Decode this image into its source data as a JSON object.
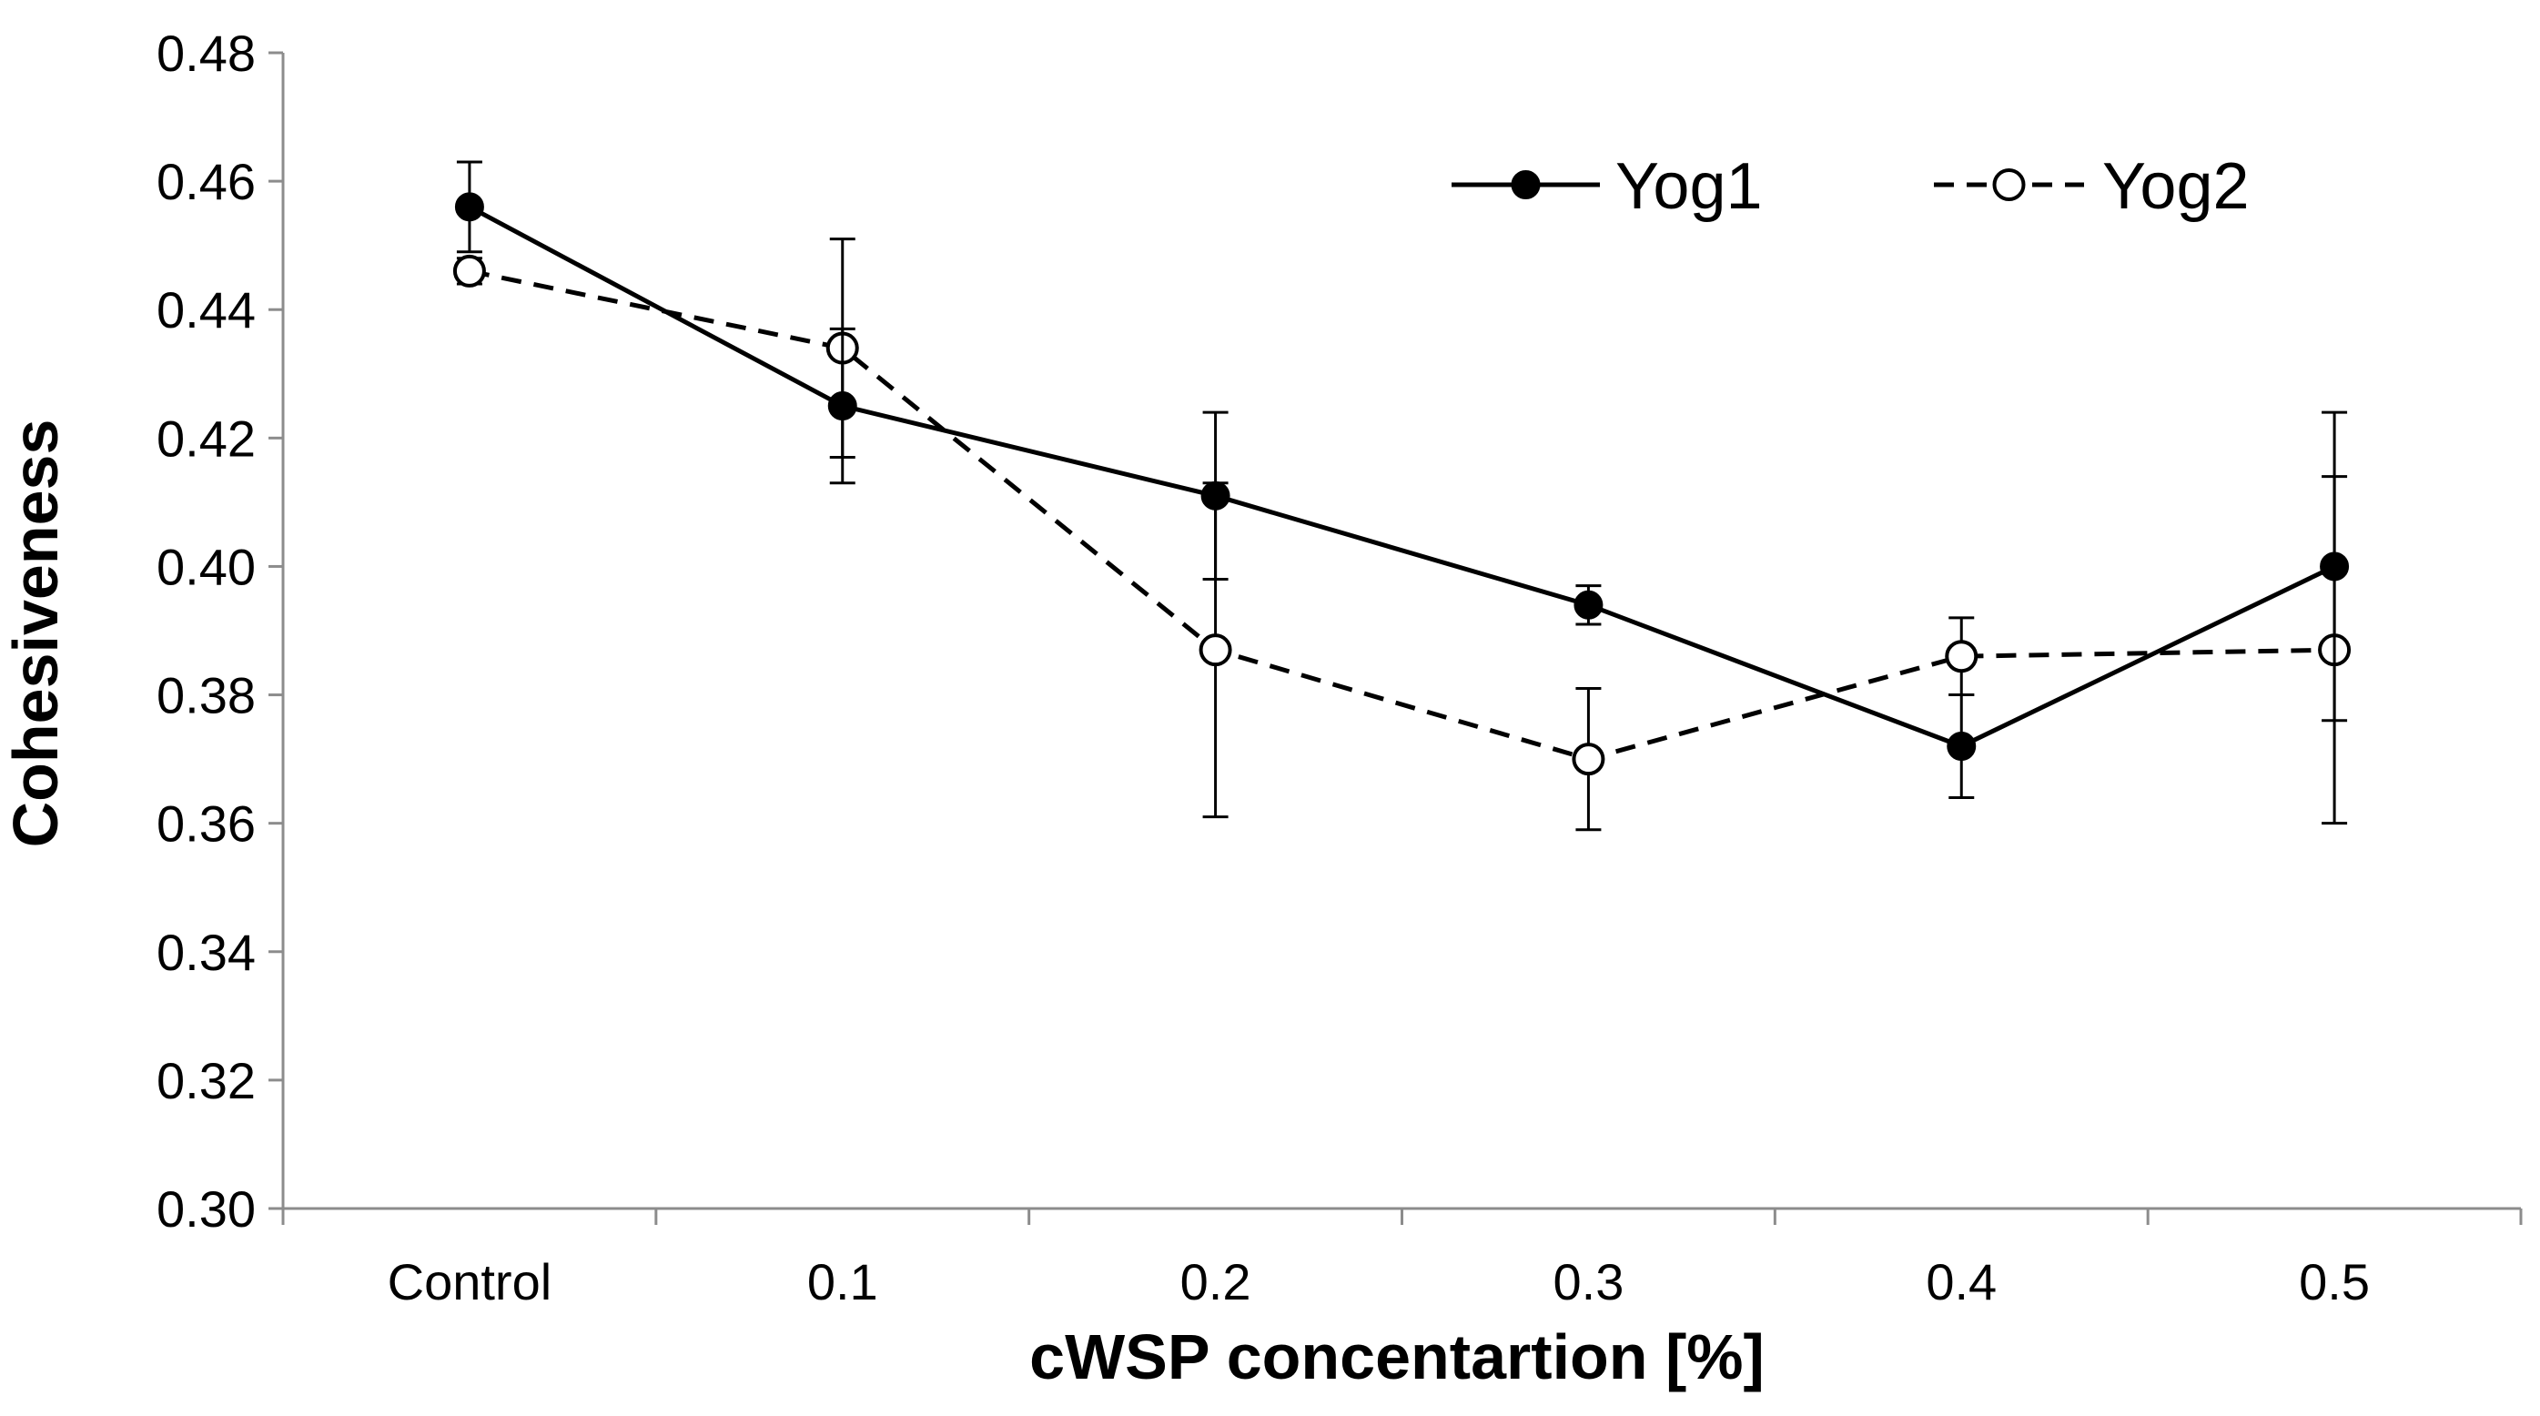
{
  "chart_data": {
    "type": "line",
    "categories": [
      "Control",
      "0.1",
      "0.2",
      "0.3",
      "0.4",
      "0.5"
    ],
    "xlabel": "cWSP concentartion [%]",
    "ylabel": "Cohesiveness",
    "ylim": [
      0.3,
      0.48
    ],
    "yticks": [
      "0.30",
      "0.32",
      "0.34",
      "0.36",
      "0.38",
      "0.40",
      "0.42",
      "0.44",
      "0.46",
      "0.48"
    ],
    "grid": false,
    "legend_position": "top-right",
    "series": [
      {
        "name": "Yog1",
        "values": [
          0.456,
          0.425,
          0.411,
          0.394,
          0.372,
          0.4
        ],
        "errors": [
          0.007,
          0.012,
          0.013,
          0.003,
          0.008,
          0.024
        ],
        "line_style": "solid",
        "marker": "filled-circle",
        "color": "#000000"
      },
      {
        "name": "Yog2",
        "values": [
          0.446,
          0.434,
          0.387,
          0.37,
          0.386,
          0.387
        ],
        "errors": [
          0.002,
          0.017,
          0.026,
          0.011,
          0.006,
          0.027
        ],
        "line_style": "dashed",
        "marker": "open-circle",
        "color": "#000000"
      }
    ]
  }
}
